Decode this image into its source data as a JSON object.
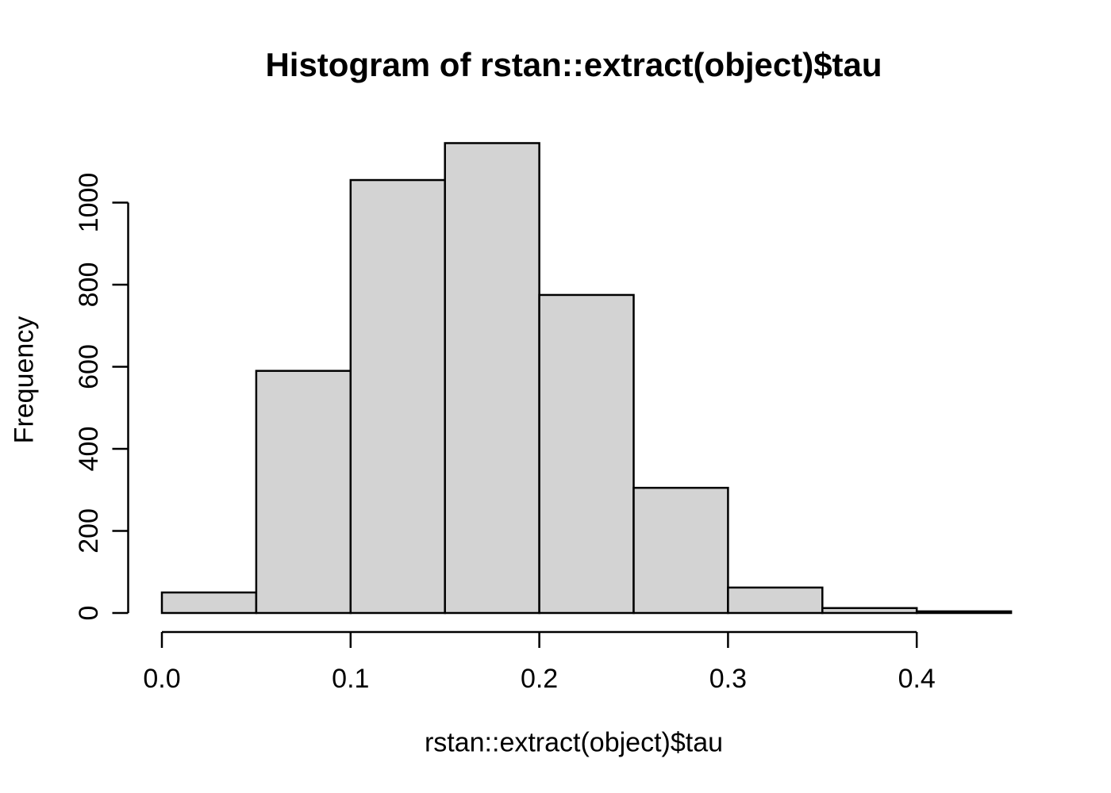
{
  "chart_data": {
    "type": "bar",
    "subtype": "histogram",
    "title": "Histogram of rstan::extract(object)$tau",
    "xlabel": "rstan::extract(object)$tau",
    "ylabel": "Frequency",
    "bin_edges": [
      0.0,
      0.05,
      0.1,
      0.15,
      0.2,
      0.25,
      0.3,
      0.35,
      0.4,
      0.45
    ],
    "counts": [
      50,
      590,
      1055,
      1145,
      775,
      305,
      62,
      12,
      4
    ],
    "x_ticks": [
      0.0,
      0.1,
      0.2,
      0.3,
      0.4
    ],
    "x_tick_labels": [
      "0.0",
      "0.1",
      "0.2",
      "0.3",
      "0.4"
    ],
    "y_ticks": [
      0,
      200,
      400,
      600,
      800,
      1000
    ],
    "y_tick_labels": [
      "0",
      "200",
      "400",
      "600",
      "800",
      "1000"
    ],
    "xlim": [
      0.0,
      0.45
    ],
    "ylim": [
      0,
      1150
    ],
    "grid": false,
    "legend": "none",
    "bar_fill": "#d3d3d3",
    "bar_border": "#000000",
    "axis_color": "#000000",
    "text_color": "#000000",
    "background": "#ffffff"
  }
}
